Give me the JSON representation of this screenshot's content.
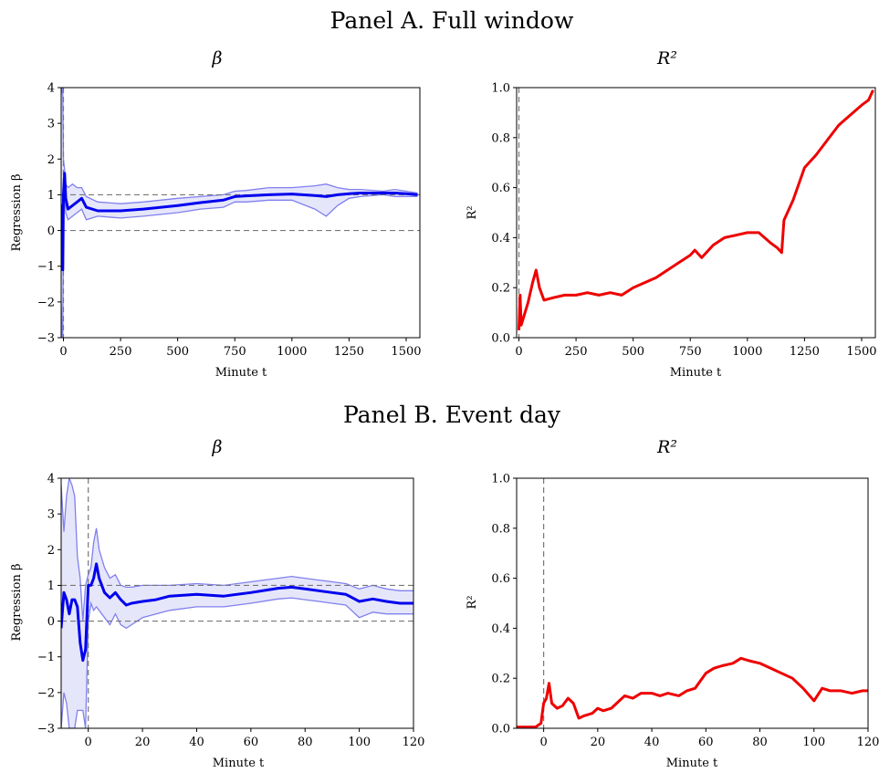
{
  "panels": [
    {
      "title": "Panel A. Full window"
    },
    {
      "title": "Panel B. Event day"
    }
  ],
  "chart_data": [
    {
      "type": "line",
      "panel": "Panel A. Full window",
      "title": "β",
      "xlabel": "Minute t",
      "ylabel": "Regression β",
      "xlim": [
        -10,
        1560
      ],
      "ylim": [
        -3,
        4
      ],
      "xticks": [
        0,
        250,
        500,
        750,
        1000,
        1250,
        1500
      ],
      "yticks": [
        -3,
        -2,
        -1,
        0,
        1,
        2,
        3,
        4
      ],
      "ytick_labels": [
        "−3",
        "−2",
        "−1",
        "0",
        "1",
        "2",
        "3",
        "4"
      ],
      "hlines": [
        0,
        1
      ],
      "vline": 0,
      "colors": {
        "line": "#0000ee",
        "band": "#8080ee",
        "fill": "#e6e6fb"
      },
      "x": [
        -10,
        -6,
        -3,
        0,
        5,
        10,
        20,
        40,
        60,
        80,
        100,
        150,
        250,
        350,
        500,
        600,
        700,
        750,
        800,
        900,
        1000,
        1100,
        1150,
        1200,
        1250,
        1300,
        1400,
        1450,
        1500,
        1550
      ],
      "estimate": [
        0.3,
        0.7,
        -1.1,
        1.0,
        1.6,
        0.9,
        0.6,
        0.7,
        0.8,
        0.9,
        0.65,
        0.55,
        0.55,
        0.6,
        0.7,
        0.78,
        0.85,
        0.95,
        0.97,
        1.0,
        1.02,
        0.98,
        0.95,
        1.0,
        1.03,
        1.05,
        1.05,
        1.05,
        1.03,
        1.0
      ],
      "upper": [
        3.8,
        4.0,
        3.9,
        2.0,
        1.7,
        1.3,
        1.2,
        1.3,
        1.2,
        1.2,
        0.95,
        0.8,
        0.75,
        0.8,
        0.9,
        0.95,
        1.0,
        1.1,
        1.12,
        1.2,
        1.2,
        1.25,
        1.3,
        1.2,
        1.15,
        1.15,
        1.1,
        1.15,
        1.1,
        1.05
      ],
      "lower": [
        -2.0,
        -3.0,
        -2.9,
        0.0,
        1.3,
        0.5,
        0.3,
        0.4,
        0.5,
        0.6,
        0.3,
        0.4,
        0.35,
        0.4,
        0.5,
        0.6,
        0.65,
        0.8,
        0.8,
        0.85,
        0.85,
        0.6,
        0.4,
        0.7,
        0.9,
        0.95,
        1.0,
        0.95,
        0.95,
        0.95
      ]
    },
    {
      "type": "line",
      "panel": "Panel A. Full window",
      "title": "R²",
      "xlabel": "Minute t",
      "ylabel": "R²",
      "xlim": [
        -10,
        1560
      ],
      "ylim": [
        0,
        1
      ],
      "xticks": [
        0,
        250,
        500,
        750,
        1000,
        1250,
        1500
      ],
      "yticks": [
        0,
        0.2,
        0.4,
        0.6,
        0.8,
        1.0
      ],
      "ytick_labels": [
        "0.0",
        "0.2",
        "0.4",
        "0.6",
        "0.8",
        "1.0"
      ],
      "vline": 0,
      "colors": {
        "line": "#ee0000"
      },
      "x": [
        0,
        5,
        10,
        20,
        40,
        60,
        75,
        90,
        110,
        150,
        200,
        250,
        300,
        350,
        400,
        450,
        500,
        550,
        600,
        650,
        700,
        750,
        770,
        800,
        850,
        900,
        950,
        1000,
        1050,
        1100,
        1130,
        1150,
        1160,
        1200,
        1250,
        1300,
        1350,
        1400,
        1450,
        1500,
        1530,
        1550
      ],
      "values": [
        0.03,
        0.17,
        0.05,
        0.08,
        0.14,
        0.22,
        0.27,
        0.2,
        0.15,
        0.16,
        0.17,
        0.17,
        0.18,
        0.17,
        0.18,
        0.17,
        0.2,
        0.22,
        0.24,
        0.27,
        0.3,
        0.33,
        0.35,
        0.32,
        0.37,
        0.4,
        0.41,
        0.42,
        0.42,
        0.38,
        0.36,
        0.34,
        0.47,
        0.55,
        0.68,
        0.73,
        0.79,
        0.85,
        0.89,
        0.93,
        0.95,
        0.99
      ]
    },
    {
      "type": "line",
      "panel": "Panel B. Event day",
      "title": "β",
      "xlabel": "Minute t",
      "ylabel": "Regression β",
      "xlim": [
        -10,
        120
      ],
      "ylim": [
        -3,
        4
      ],
      "xticks": [
        0,
        20,
        40,
        60,
        80,
        100,
        120
      ],
      "yticks": [
        -3,
        -2,
        -1,
        0,
        1,
        2,
        3,
        4
      ],
      "ytick_labels": [
        "−3",
        "−2",
        "−1",
        "0",
        "1",
        "2",
        "3",
        "4"
      ],
      "hlines": [
        0,
        1
      ],
      "vline": 0,
      "colors": {
        "line": "#0000ee",
        "band": "#8080ee",
        "fill": "#e6e6fb"
      },
      "x": [
        -10,
        -9,
        -8,
        -7,
        -6,
        -5,
        -4,
        -3,
        -2,
        -1,
        0,
        1,
        2,
        3,
        4,
        6,
        8,
        10,
        12,
        14,
        16,
        20,
        25,
        30,
        40,
        50,
        60,
        70,
        75,
        80,
        85,
        90,
        95,
        100,
        105,
        110,
        115,
        120
      ],
      "estimate": [
        -0.2,
        0.8,
        0.6,
        0.2,
        0.6,
        0.6,
        0.4,
        -0.6,
        -1.1,
        -0.8,
        1.0,
        1.0,
        1.2,
        1.6,
        1.2,
        0.8,
        0.65,
        0.8,
        0.6,
        0.45,
        0.5,
        0.55,
        0.6,
        0.7,
        0.75,
        0.7,
        0.8,
        0.92,
        0.95,
        0.9,
        0.85,
        0.8,
        0.75,
        0.55,
        0.62,
        0.55,
        0.5,
        0.5
      ],
      "upper": [
        3.8,
        2.5,
        3.5,
        4.0,
        3.8,
        3.5,
        1.8,
        1.2,
        0.0,
        1.0,
        1.3,
        1.5,
        2.2,
        2.6,
        2.0,
        1.5,
        1.2,
        1.3,
        1.0,
        0.95,
        0.95,
        1.0,
        1.0,
        1.0,
        1.05,
        1.0,
        1.1,
        1.2,
        1.25,
        1.2,
        1.15,
        1.1,
        1.05,
        0.9,
        1.0,
        0.9,
        0.85,
        0.85
      ],
      "lower": [
        -3.0,
        -2.0,
        -2.3,
        -3.0,
        -3.0,
        -3.0,
        -2.5,
        -2.5,
        -2.5,
        -3.0,
        0.0,
        0.5,
        0.3,
        0.4,
        0.3,
        0.1,
        -0.1,
        0.2,
        -0.1,
        -0.2,
        -0.1,
        0.1,
        0.2,
        0.3,
        0.4,
        0.4,
        0.5,
        0.62,
        0.65,
        0.6,
        0.55,
        0.5,
        0.45,
        0.1,
        0.25,
        0.2,
        0.2,
        0.2
      ]
    },
    {
      "type": "line",
      "panel": "Panel B. Event day",
      "title": "R²",
      "xlabel": "Minute t",
      "ylabel": "R²",
      "xlim": [
        -10,
        120
      ],
      "ylim": [
        0,
        1
      ],
      "xticks": [
        0,
        20,
        40,
        60,
        80,
        100,
        120
      ],
      "yticks": [
        0,
        0.2,
        0.4,
        0.6,
        0.8,
        1.0
      ],
      "ytick_labels": [
        "0.0",
        "0.2",
        "0.4",
        "0.6",
        "0.8",
        "1.0"
      ],
      "vline": 0,
      "colors": {
        "line": "#ee0000"
      },
      "x": [
        -10,
        -6,
        -3,
        -1,
        0,
        1,
        2,
        3,
        5,
        7,
        9,
        11,
        13,
        15,
        18,
        20,
        22,
        25,
        28,
        30,
        33,
        36,
        40,
        43,
        46,
        50,
        53,
        56,
        60,
        63,
        66,
        70,
        73,
        76,
        80,
        84,
        88,
        92,
        96,
        100,
        103,
        106,
        110,
        114,
        118,
        120
      ],
      "values": [
        0.005,
        0.005,
        0.005,
        0.02,
        0.1,
        0.12,
        0.18,
        0.1,
        0.08,
        0.09,
        0.12,
        0.1,
        0.04,
        0.05,
        0.06,
        0.08,
        0.07,
        0.08,
        0.11,
        0.13,
        0.12,
        0.14,
        0.14,
        0.13,
        0.14,
        0.13,
        0.15,
        0.16,
        0.22,
        0.24,
        0.25,
        0.26,
        0.28,
        0.27,
        0.26,
        0.24,
        0.22,
        0.2,
        0.16,
        0.11,
        0.16,
        0.15,
        0.15,
        0.14,
        0.15,
        0.15
      ]
    }
  ]
}
